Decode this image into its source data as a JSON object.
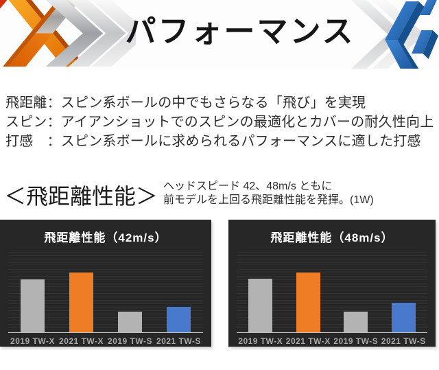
{
  "banner": {
    "title": "パフォーマンス",
    "text_color": "#161616",
    "accent_orange": "#f08c1e",
    "accent_blue": "#2d72c1"
  },
  "intro": {
    "lines": [
      "飛距離：スピン系ボールの中でもさらなる「飛び」を実現",
      "スピン：アイアンショットでのスピンの最適化とカバーの耐久性向上",
      "打感　：スピン系ボールに求められるパフォーマンスに適した打感"
    ]
  },
  "section": {
    "heading": "＜飛距離性能＞",
    "note_lines": [
      "ヘッドスピード 42、48m/s ともに",
      "前モデルを上回る飛距離性能を発揮。(1W)"
    ]
  },
  "chart_data": [
    {
      "type": "bar",
      "title": "飛距離性能（42m/s）",
      "categories": [
        "2019 TW-X",
        "2021 TW-X",
        "2019 TW-S",
        "2021 TW-S"
      ],
      "values": [
        66,
        74,
        26,
        32
      ],
      "value_scale": "relative bar height in % of plot area (no numeric axis shown)",
      "bar_colors": [
        "#b3b3b3",
        "#ef7d26",
        "#b3b3b3",
        "#4879cb"
      ],
      "background_color": "#272727",
      "title_color": "#ffffff",
      "label_color": "#a9a9a9",
      "grid": "subtle horizontal pinstripes, baseline only",
      "legend": "none"
    },
    {
      "type": "bar",
      "title": "飛距離性能（48m/s）",
      "categories": [
        "2019 TW-X",
        "2021 TW-X",
        "2019 TW-S",
        "2021 TW-S"
      ],
      "values": [
        67,
        74,
        26,
        37
      ],
      "value_scale": "relative bar height in % of plot area (no numeric axis shown)",
      "bar_colors": [
        "#b3b3b3",
        "#ef7d26",
        "#b3b3b3",
        "#4879cb"
      ],
      "background_color": "#272727",
      "title_color": "#ffffff",
      "label_color": "#a9a9a9",
      "grid": "subtle horizontal pinstripes, baseline only",
      "legend": "none"
    }
  ]
}
